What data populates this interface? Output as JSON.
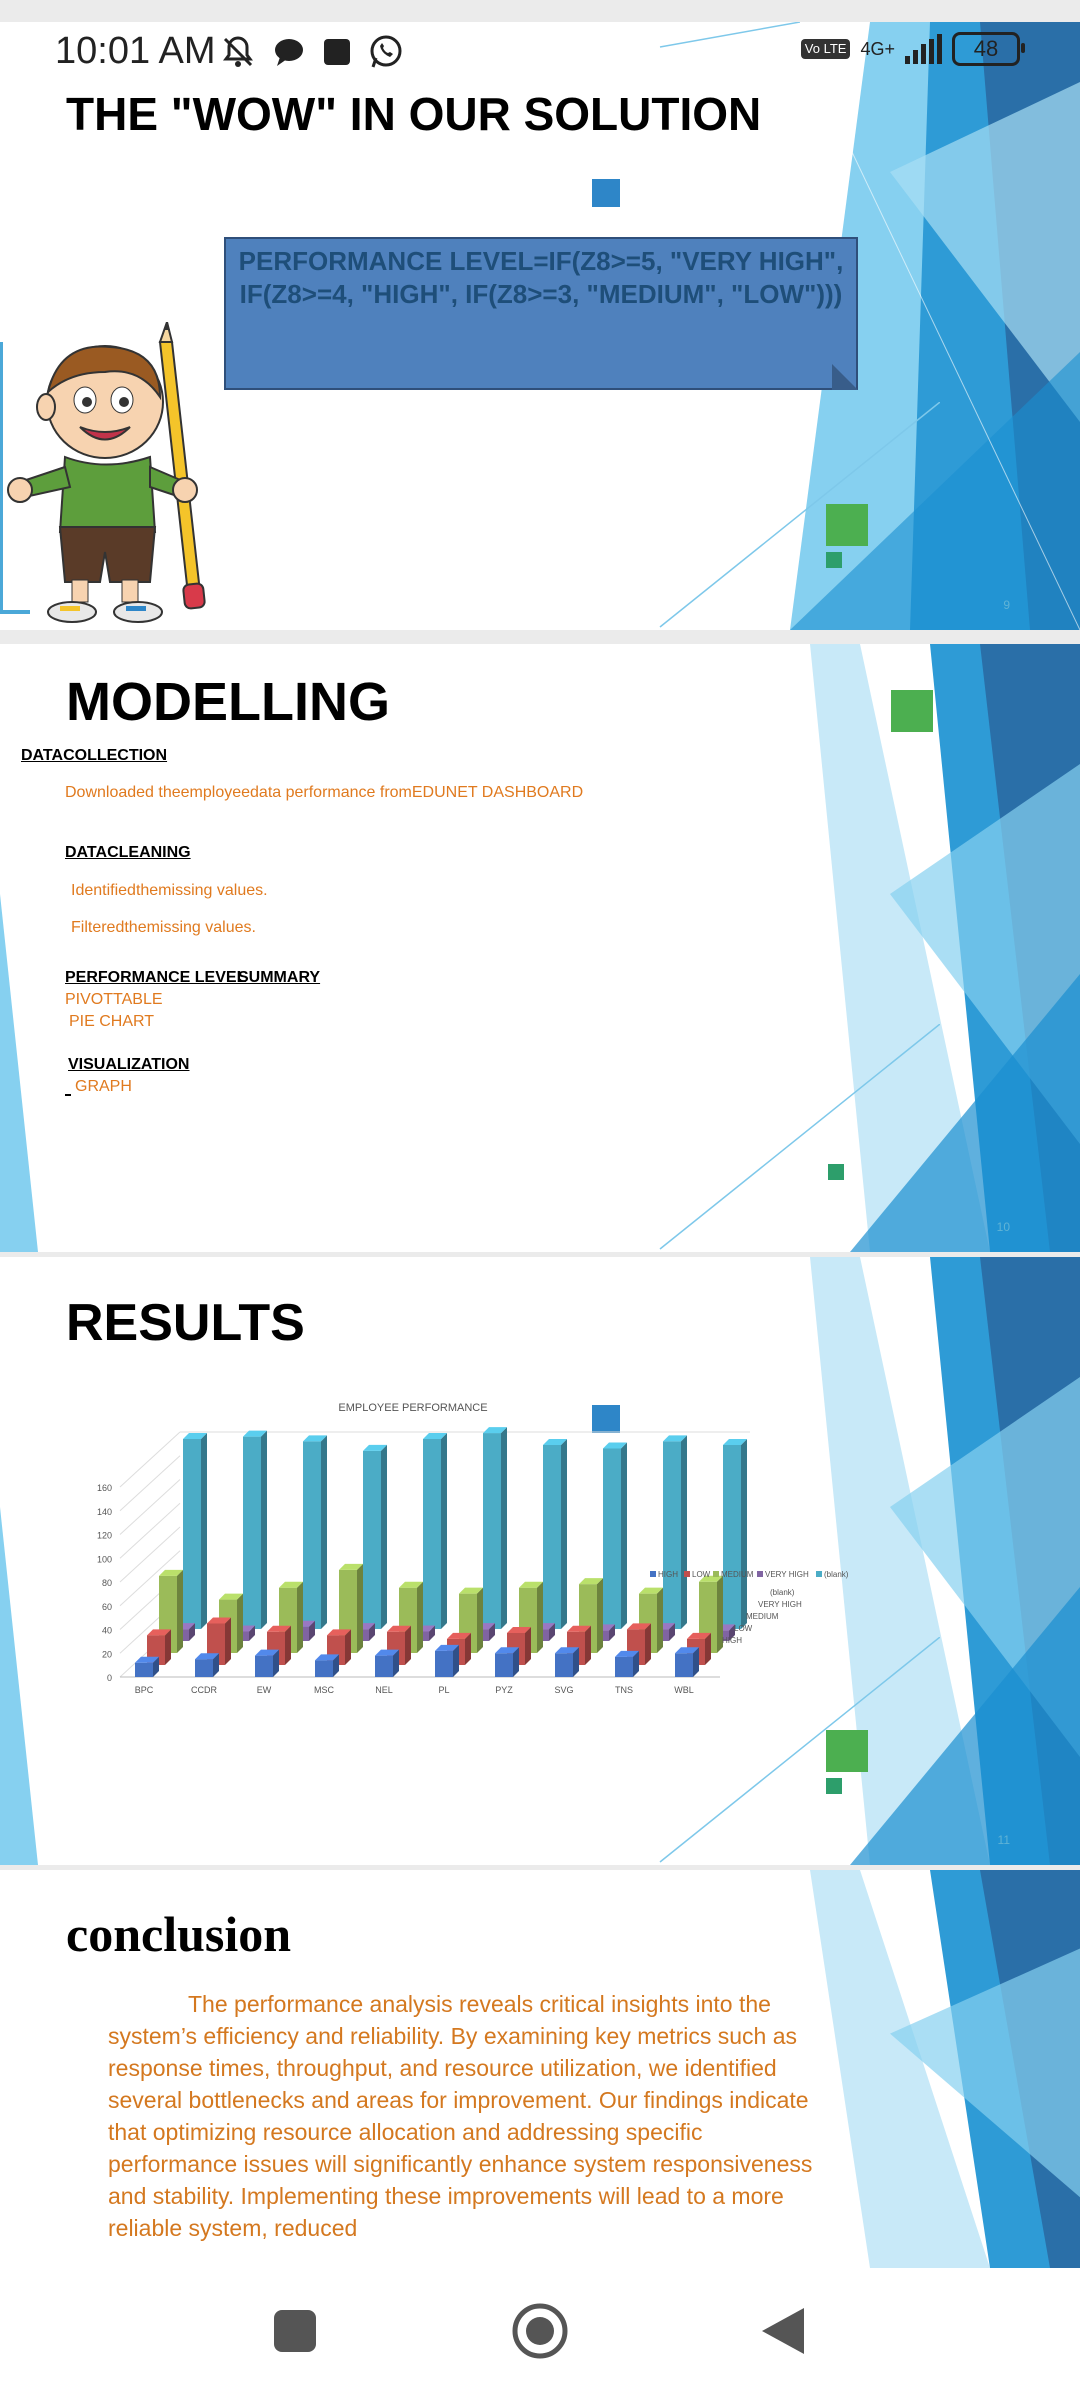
{
  "status_bar": {
    "time": "10:01 AM",
    "network_type": "4G+",
    "volte": "Vo LTE",
    "battery": "48",
    "icons": [
      "bell-off-icon",
      "chat-icon",
      "square-icon",
      "whatsapp-icon"
    ]
  },
  "slides": [
    {
      "title": "THE \"WOW\" IN OUR SOLUTION",
      "formula": "PERFORMANCE LEVEL=IF(Z8>=5, \"VERY HIGH\", IF(Z8>=4, \"HIGH\", IF(Z8>=3, \"MEDIUM\", \"LOW\")))",
      "slide_number": "9"
    },
    {
      "title": "MODELLING",
      "data_collection_heading": "DATACOLLECTION",
      "data_collection_text": "Downloaded theemployeedata performance fromEDUNET DASHBOARD",
      "data_cleaning_heading": "DATACLEANING",
      "data_cleaning_items": [
        "Identifiedthemissing values.",
        "Filteredthemissing values."
      ],
      "performance_heading_1": "PERFORMANCE LEVEL",
      "performance_heading_2": "SUMMARY",
      "performance_items": [
        "PIVOTTABLE",
        "PIE CHART"
      ],
      "visualization_heading": "VISUALIZATION",
      "visualization_item": "GRAPH",
      "slide_number": "10"
    },
    {
      "title": "RESULTS",
      "slide_number": "11"
    },
    {
      "title": "conclusion",
      "text": "The performance analysis reveals critical insights into the system’s efficiency and reliability. By examining key metrics such as response times, throughput, and resource utilization, we identified several bottlenecks and areas for improvement. Our findings indicate that optimizing resource allocation and addressing specific performance issues will significantly enhance system responsiveness and stability. Implementing these improvements will lead to a more reliable system, reduced"
    }
  ],
  "chart_data": {
    "type": "bar",
    "title": "EMPLOYEE PERFORMANCE",
    "categories": [
      "BPC",
      "CCDR",
      "EW",
      "MSC",
      "NEL",
      "PL",
      "PYZ",
      "SVG",
      "TNS",
      "WBL"
    ],
    "series": [
      {
        "name": "HIGH",
        "values": [
          12,
          15,
          18,
          14,
          18,
          22,
          20,
          20,
          17,
          20
        ],
        "color": "#4472c4"
      },
      {
        "name": "LOW",
        "values": [
          25,
          35,
          28,
          25,
          28,
          22,
          27,
          28,
          30,
          22
        ],
        "color": "#c0504d"
      },
      {
        "name": "MEDIUM",
        "values": [
          65,
          45,
          55,
          70,
          55,
          50,
          55,
          58,
          50,
          60
        ],
        "color": "#9bbb59"
      },
      {
        "name": "VERY HIGH",
        "values": [
          10,
          8,
          12,
          10,
          8,
          10,
          10,
          9,
          10,
          9
        ],
        "color": "#8064a2"
      },
      {
        "name": "(blank)",
        "values": [
          160,
          162,
          158,
          150,
          160,
          165,
          155,
          152,
          158,
          155
        ],
        "color": "#4bacc6"
      }
    ],
    "ylim": [
      0,
      160
    ],
    "yticks": [
      0,
      20,
      40,
      60,
      80,
      100,
      120,
      140,
      160
    ],
    "legend_position": "right",
    "depth_labels": [
      "(blank)",
      "VERY HIGH",
      "MEDIUM",
      "LOW",
      "HIGH"
    ]
  },
  "colors": {
    "blue_deco_dark": "#2a6fa8",
    "blue_deco_mid": "#2e9bd6",
    "blue_deco_light": "#86d0f0",
    "orange_text": "#e07a1f"
  }
}
